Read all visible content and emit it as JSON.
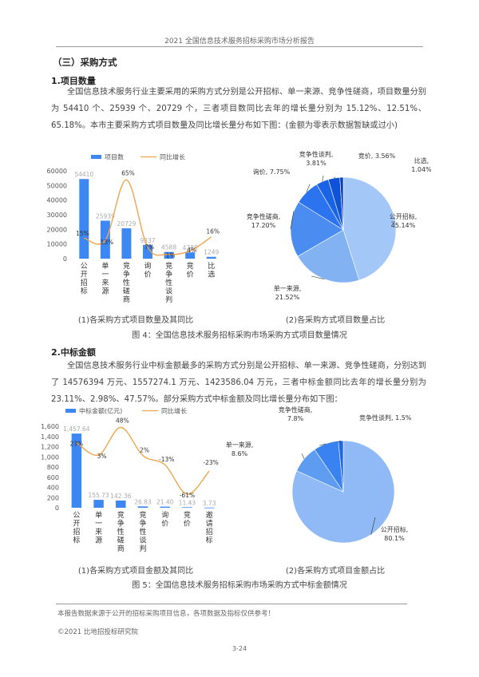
{
  "header": {
    "title": "2021 全国信息技术服务招标采购市场分析报告"
  },
  "section": {
    "title": "（三）采购方式"
  },
  "sub1": {
    "title": "1.项目数量",
    "para": "全国信息技术服务行业主要采用的采购方式分别是公开招标、单一来源、竞争性磋商，项目数量分别为 54410 个、25939 个、20729 个，三者项目数同比去年的增长量分别为 15.12%、12.51%、65.18%。本市主要采购方式项目数量及同比增长量分布如下图：(金额为零表示数据暂缺或过小)"
  },
  "fig4": {
    "caption_left": "(1)各采购方式项目数量及其同比",
    "caption_right": "(2)各采购方式项目数量占比",
    "title": "图 4：全国信息技术服务招标采购市场采购方式项目数量情况"
  },
  "sub2": {
    "title": "2.中标金额",
    "para": "全国信息技术服务行业中标金额最多的采购方式分别是公开招标、单一来源、竞争性磋商，分别达到了 14576394 万元、1557274.1 万元、1423586.04 万元，三者中标金额同比去年的增长量分别为 23.11%、2.98%、47.57%。部分采购方式中标金额及同比增长量分布如下图："
  },
  "fig5": {
    "caption_left": "(1)各采购方式项目金额及其同比",
    "caption_right": "(2)各采购方式项目金额占比",
    "title": "图 5：全国信息技术服务招标采购市场采购方式中标金额情况"
  },
  "footer": {
    "note": "本报告数据来源于公开的招标采购项目信息，各项数据及指标仅供参考！",
    "copyright": "©2021 比地招投标研究院",
    "page": "3-24"
  },
  "chart_data": [
    {
      "type": "bar",
      "categories": [
        "公开招标",
        "单一来源",
        "竞争性磋商",
        "询价",
        "竞争性谈判",
        "竞价",
        "比选"
      ],
      "series": [
        {
          "name": "项目数",
          "type": "bar",
          "values": [
            54410,
            25939,
            20729,
            9337,
            4588,
            4288,
            1249
          ],
          "labels": [
            "54410",
            "25939",
            "20729",
            "9337",
            "4588",
            "4288",
            "1249"
          ]
        },
        {
          "name": "同比增长",
          "type": "line",
          "values": [
            15,
            13,
            65,
            7,
            1,
            4,
            16
          ],
          "labels": [
            "15%",
            "13%",
            "65%",
            "7%",
            "1%",
            "4%",
            "16%"
          ]
        }
      ],
      "ylim": [
        0,
        60000
      ],
      "yticks": [
        "0",
        "10000",
        "20000",
        "30000",
        "40000",
        "50000",
        "60000"
      ],
      "legend": "top-left",
      "colors": {
        "bar": "#3d87f2",
        "line": "#f0a44b"
      }
    },
    {
      "type": "pie",
      "labels": [
        "公开招标",
        "单一来源",
        "竞争性磋商",
        "询价",
        "竞争性谈判",
        "竞价",
        "比选"
      ],
      "values": [
        45.14,
        21.52,
        17.2,
        7.75,
        3.81,
        3.56,
        1.04
      ],
      "label_text": [
        "公开招标,\n45.14%",
        "单一来源,\n21.52%",
        "竞争性磋商,\n17.20%",
        "询价, 7.75%",
        "竞争性谈判,\n3.81%",
        "竞价, 3.56%",
        "比选,\n1.04%"
      ],
      "colors": [
        "#a3c8f8",
        "#83b2f3",
        "#4a8cf0",
        "#2c74ef",
        "#1a62e6",
        "#0f52d8",
        "#0b3fb0"
      ]
    },
    {
      "type": "bar",
      "categories": [
        "公开招标",
        "单一来源",
        "竞争性磋商",
        "竞争性谈判",
        "询价",
        "竞价",
        "邀请招标"
      ],
      "series": [
        {
          "name": "中标金额(亿元)",
          "type": "bar",
          "values": [
            1457.64,
            155.73,
            142.36,
            26.83,
            21.4,
            11.43,
            3.73
          ],
          "labels": [
            "1,457.64",
            "155.73",
            "142.36",
            "26.83",
            "21.40",
            "11.43",
            "3.73"
          ]
        },
        {
          "name": "同比增长",
          "type": "line",
          "values": [
            23,
            3,
            48,
            2,
            -13,
            -61,
            -23
          ],
          "labels": [
            "23%",
            "3%",
            "48%",
            "2%",
            "-13%",
            "-61%",
            "-23%"
          ]
        }
      ],
      "ylim": [
        0,
        1600
      ],
      "yticks": [
        "0",
        "200",
        "400",
        "600",
        "800",
        "1,000",
        "1,200",
        "1,400",
        "1,600"
      ],
      "legend": "top-left",
      "colors": {
        "bar": "#3d87f2",
        "line": "#f0a44b"
      }
    },
    {
      "type": "pie",
      "labels": [
        "公开招标",
        "单一来源",
        "竞争性磋商",
        "竞争性谈判"
      ],
      "values": [
        80.1,
        8.6,
        7.8,
        1.5
      ],
      "label_text": [
        "公开招标,\n80.1%",
        "单一来源,\n8.6%",
        "竞争性磋商,\n7.8%",
        "竞争性谈判, 1.5%"
      ],
      "colors": [
        "#8fbaf5",
        "#5e9cf2",
        "#3a82ef",
        "#1f66e4",
        "#114fd0",
        "#0b3fb0",
        "#072f90"
      ]
    }
  ]
}
